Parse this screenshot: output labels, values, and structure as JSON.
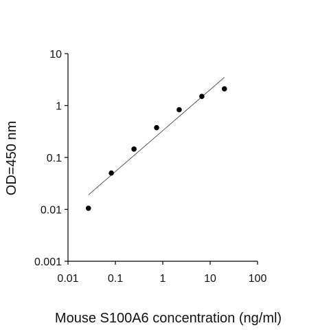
{
  "chart_data": {
    "type": "scatter",
    "title": "",
    "xlabel": "Mouse S100A6 concentration (ng/ml)",
    "ylabel": "OD=450 nm",
    "x_scale": "log",
    "y_scale": "log",
    "xlim": [
      0.01,
      100
    ],
    "ylim": [
      0.001,
      10
    ],
    "x_ticks": [
      {
        "value": 0.01,
        "label": "0.01"
      },
      {
        "value": 0.1,
        "label": "0.1"
      },
      {
        "value": 1,
        "label": "1"
      },
      {
        "value": 10,
        "label": "10"
      },
      {
        "value": 100,
        "label": "100"
      }
    ],
    "y_ticks": [
      {
        "value": 0.001,
        "label": "0.001"
      },
      {
        "value": 0.01,
        "label": "0.01"
      },
      {
        "value": 0.1,
        "label": "0.1"
      },
      {
        "value": 1,
        "label": "1"
      },
      {
        "value": 10,
        "label": "10"
      }
    ],
    "grid": false,
    "legend": "none",
    "points": [
      {
        "x": 0.027,
        "y": 0.0105
      },
      {
        "x": 0.082,
        "y": 0.05
      },
      {
        "x": 0.247,
        "y": 0.145
      },
      {
        "x": 0.741,
        "y": 0.375
      },
      {
        "x": 2.22,
        "y": 0.83
      },
      {
        "x": 6.67,
        "y": 1.5
      },
      {
        "x": 20.0,
        "y": 2.1
      }
    ],
    "fit_line": {
      "x": [
        0.027,
        20.0
      ],
      "y": [
        0.019,
        3.5
      ]
    },
    "colors": {
      "points": "#000000",
      "line": "#444444",
      "axis": "#000000"
    }
  }
}
